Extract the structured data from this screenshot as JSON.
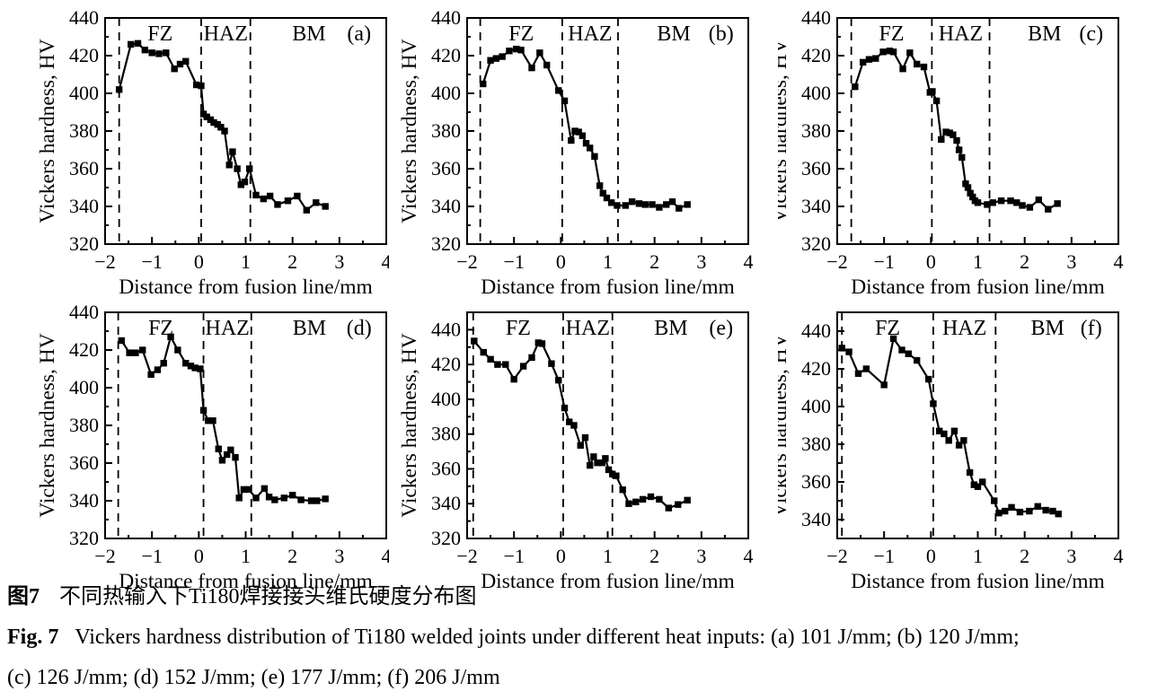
{
  "caption": {
    "zh_label": "图7",
    "zh_text": "不同热输入下Ti180焊接接头维氏硬度分布图",
    "en_label": "Fig. 7",
    "en_text": "Vickers hardness distribution of Ti180 welded joints under different heat inputs: (a) 101 J/mm; (b) 120 J/mm;",
    "en_line2": "(c) 126 J/mm; (d) 152 J/mm; (e) 177 J/mm; (f) 206 J/mm"
  },
  "chart_data": [
    {
      "type": "line",
      "panel": "(a)",
      "heat_input": "101 J/mm",
      "xlabel": "Distance from fusion line/mm",
      "ylabel": "Vickers hardness, HV",
      "xlim": [
        -2,
        4
      ],
      "ylim": [
        320,
        440
      ],
      "xticks": [
        -2,
        -1,
        0,
        1,
        2,
        3,
        4
      ],
      "yticks": [
        320,
        340,
        360,
        380,
        400,
        420,
        440
      ],
      "region_lines": [
        -1.7,
        0.05,
        1.1
      ],
      "region_labels": [
        "FZ",
        "HAZ",
        "BM"
      ],
      "marker": "square",
      "color": "#000000",
      "points": [
        [
          -1.7,
          402
        ],
        [
          -1.45,
          426
        ],
        [
          -1.3,
          426.5
        ],
        [
          -1.15,
          423
        ],
        [
          -1.0,
          421.5
        ],
        [
          -0.85,
          421
        ],
        [
          -0.7,
          421.5
        ],
        [
          -0.52,
          413
        ],
        [
          -0.4,
          415.5
        ],
        [
          -0.28,
          417
        ],
        [
          -0.05,
          404.5
        ],
        [
          0.05,
          404
        ],
        [
          0.1,
          389
        ],
        [
          0.17,
          387.5
        ],
        [
          0.25,
          386
        ],
        [
          0.32,
          384.5
        ],
        [
          0.4,
          383.5
        ],
        [
          0.47,
          382
        ],
        [
          0.55,
          380
        ],
        [
          0.65,
          362
        ],
        [
          0.72,
          369
        ],
        [
          0.82,
          360
        ],
        [
          0.9,
          351.5
        ],
        [
          0.98,
          353
        ],
        [
          1.08,
          360
        ],
        [
          1.22,
          346
        ],
        [
          1.38,
          344
        ],
        [
          1.52,
          345.5
        ],
        [
          1.68,
          341
        ],
        [
          1.9,
          343
        ],
        [
          2.1,
          345.5
        ],
        [
          2.3,
          338
        ],
        [
          2.5,
          342
        ],
        [
          2.7,
          340
        ]
      ]
    },
    {
      "type": "line",
      "panel": "(b)",
      "heat_input": "120 J/mm",
      "xlabel": "Distance from fusion line/mm",
      "ylabel": "Vickers hardness, HV",
      "xlim": [
        -2,
        4
      ],
      "ylim": [
        320,
        440
      ],
      "xticks": [
        -2,
        -1,
        0,
        1,
        2,
        3,
        4
      ],
      "yticks": [
        320,
        340,
        360,
        380,
        400,
        420,
        440
      ],
      "region_lines": [
        -1.72,
        0.03,
        1.22
      ],
      "region_labels": [
        "FZ",
        "HAZ",
        "BM"
      ],
      "marker": "square",
      "color": "#000000",
      "points": [
        [
          -1.66,
          405
        ],
        [
          -1.5,
          417.5
        ],
        [
          -1.38,
          418.5
        ],
        [
          -1.25,
          419.5
        ],
        [
          -1.1,
          422.5
        ],
        [
          -0.95,
          423.5
        ],
        [
          -0.85,
          423
        ],
        [
          -0.62,
          413.5
        ],
        [
          -0.45,
          421.5
        ],
        [
          -0.3,
          415
        ],
        [
          -0.05,
          401.5
        ],
        [
          0.08,
          396
        ],
        [
          0.22,
          375
        ],
        [
          0.3,
          380
        ],
        [
          0.38,
          379.5
        ],
        [
          0.46,
          377.5
        ],
        [
          0.54,
          373.5
        ],
        [
          0.62,
          371
        ],
        [
          0.72,
          366.5
        ],
        [
          0.83,
          351
        ],
        [
          0.9,
          347
        ],
        [
          0.98,
          344.5
        ],
        [
          1.08,
          342
        ],
        [
          1.2,
          340.5
        ],
        [
          1.38,
          340.5
        ],
        [
          1.52,
          342.5
        ],
        [
          1.67,
          341.5
        ],
        [
          1.8,
          341
        ],
        [
          1.95,
          341
        ],
        [
          2.1,
          339.5
        ],
        [
          2.25,
          341
        ],
        [
          2.38,
          342.5
        ],
        [
          2.52,
          339
        ],
        [
          2.7,
          341
        ]
      ]
    },
    {
      "type": "line",
      "panel": "(c)",
      "heat_input": "126 J/mm",
      "xlabel": "Distance from fusion line/mm",
      "ylabel": "Vickers hardness, HV",
      "xlim": [
        -2,
        4
      ],
      "ylim": [
        320,
        440
      ],
      "xticks": [
        -2,
        -1,
        0,
        1,
        2,
        3,
        4
      ],
      "yticks": [
        320,
        340,
        360,
        380,
        400,
        420,
        440
      ],
      "region_lines": [
        -1.7,
        0.02,
        1.25
      ],
      "region_labels": [
        "FZ",
        "HAZ",
        "BM"
      ],
      "marker": "square",
      "color": "#000000",
      "points": [
        [
          -1.62,
          403.5
        ],
        [
          -1.45,
          416.5
        ],
        [
          -1.32,
          418
        ],
        [
          -1.18,
          418.5
        ],
        [
          -1.02,
          422
        ],
        [
          -0.88,
          422.5
        ],
        [
          -0.8,
          422
        ],
        [
          -0.6,
          413
        ],
        [
          -0.45,
          421.5
        ],
        [
          -0.3,
          415.5
        ],
        [
          -0.15,
          414
        ],
        [
          -0.02,
          400.5
        ],
        [
          0.03,
          401
        ],
        [
          0.12,
          396
        ],
        [
          0.22,
          375.5
        ],
        [
          0.32,
          379.5
        ],
        [
          0.4,
          379
        ],
        [
          0.47,
          378
        ],
        [
          0.55,
          375
        ],
        [
          0.6,
          370
        ],
        [
          0.66,
          366
        ],
        [
          0.74,
          352
        ],
        [
          0.79,
          350
        ],
        [
          0.84,
          347
        ],
        [
          0.89,
          345
        ],
        [
          0.94,
          343
        ],
        [
          1.0,
          342
        ],
        [
          1.2,
          341
        ],
        [
          1.32,
          342
        ],
        [
          1.5,
          343
        ],
        [
          1.7,
          343
        ],
        [
          1.83,
          342
        ],
        [
          1.95,
          340.5
        ],
        [
          2.11,
          339.5
        ],
        [
          2.3,
          343.5
        ],
        [
          2.5,
          338.5
        ],
        [
          2.7,
          341.5
        ]
      ]
    },
    {
      "type": "line",
      "panel": "(d)",
      "heat_input": "152 J/mm",
      "xlabel": "Distance from fusion line/mm",
      "ylabel": "Vickers hardness, HV",
      "xlim": [
        -2,
        4
      ],
      "ylim": [
        320,
        440
      ],
      "xticks": [
        -2,
        -1,
        0,
        1,
        2,
        3,
        4
      ],
      "yticks": [
        320,
        340,
        360,
        380,
        400,
        420,
        440
      ],
      "region_lines": [
        -1.72,
        0.1,
        1.12
      ],
      "region_labels": [
        "FZ",
        "HAZ",
        "BM"
      ],
      "marker": "square",
      "color": "#000000",
      "points": [
        [
          -1.65,
          425
        ],
        [
          -1.48,
          418.5
        ],
        [
          -1.35,
          418.5
        ],
        [
          -1.2,
          420
        ],
        [
          -1.02,
          407
        ],
        [
          -0.88,
          409.5
        ],
        [
          -0.75,
          413
        ],
        [
          -0.6,
          427
        ],
        [
          -0.45,
          420
        ],
        [
          -0.28,
          413
        ],
        [
          -0.17,
          411.5
        ],
        [
          -0.08,
          410.5
        ],
        [
          0.03,
          410
        ],
        [
          0.1,
          388
        ],
        [
          0.2,
          382.5
        ],
        [
          0.3,
          382.5
        ],
        [
          0.42,
          367.5
        ],
        [
          0.5,
          361.5
        ],
        [
          0.6,
          364.5
        ],
        [
          0.68,
          367
        ],
        [
          0.78,
          363
        ],
        [
          0.86,
          341.5
        ],
        [
          0.96,
          346
        ],
        [
          1.06,
          346
        ],
        [
          1.22,
          341.5
        ],
        [
          1.4,
          346.5
        ],
        [
          1.5,
          342
        ],
        [
          1.62,
          340.5
        ],
        [
          1.82,
          341.5
        ],
        [
          2.0,
          343
        ],
        [
          2.18,
          340.5
        ],
        [
          2.4,
          340
        ],
        [
          2.52,
          340
        ],
        [
          2.7,
          341
        ]
      ]
    },
    {
      "type": "line",
      "panel": "(e)",
      "heat_input": "177 J/mm",
      "xlabel": "Distance from fusion line/mm",
      "ylabel": "Vickers hardness, HV",
      "xlim": [
        -2,
        4
      ],
      "ylim": [
        320,
        450
      ],
      "xticks": [
        -2,
        -1,
        0,
        1,
        2,
        3,
        4
      ],
      "yticks": [
        320,
        340,
        360,
        380,
        400,
        420,
        440
      ],
      "region_lines": [
        -1.87,
        0.05,
        1.1
      ],
      "region_labels": [
        "FZ",
        "HAZ",
        "BM"
      ],
      "marker": "square",
      "color": "#000000",
      "points": [
        [
          -1.85,
          433.5
        ],
        [
          -1.65,
          427
        ],
        [
          -1.5,
          423
        ],
        [
          -1.35,
          420
        ],
        [
          -1.18,
          420
        ],
        [
          -1.0,
          411.5
        ],
        [
          -0.8,
          419
        ],
        [
          -0.62,
          424
        ],
        [
          -0.48,
          432.5
        ],
        [
          -0.4,
          432
        ],
        [
          -0.2,
          420.5
        ],
        [
          -0.05,
          411
        ],
        [
          0.08,
          395
        ],
        [
          0.18,
          387
        ],
        [
          0.28,
          385
        ],
        [
          0.42,
          373.5
        ],
        [
          0.52,
          378
        ],
        [
          0.62,
          362
        ],
        [
          0.7,
          367
        ],
        [
          0.78,
          363.5
        ],
        [
          0.88,
          363.5
        ],
        [
          0.95,
          366
        ],
        [
          1.02,
          359.5
        ],
        [
          1.1,
          357
        ],
        [
          1.18,
          356
        ],
        [
          1.32,
          348
        ],
        [
          1.45,
          340
        ],
        [
          1.6,
          341
        ],
        [
          1.75,
          342.5
        ],
        [
          1.92,
          344
        ],
        [
          2.1,
          342.5
        ],
        [
          2.3,
          337.5
        ],
        [
          2.5,
          339.5
        ],
        [
          2.7,
          342
        ]
      ]
    },
    {
      "type": "line",
      "panel": "(f)",
      "heat_input": "206 J/mm",
      "xlabel": "Distance from fusion line/mm",
      "ylabel": "Vickers hardness, HV",
      "xlim": [
        -2,
        4
      ],
      "ylim": [
        330,
        450
      ],
      "xticks": [
        -2,
        -1,
        0,
        1,
        2,
        3,
        4
      ],
      "yticks": [
        340,
        360,
        380,
        400,
        420,
        440
      ],
      "region_lines": [
        -1.9,
        0.05,
        1.38
      ],
      "region_labels": [
        "FZ",
        "HAZ",
        "BM"
      ],
      "marker": "square",
      "color": "#000000",
      "points": [
        [
          -1.9,
          431
        ],
        [
          -1.75,
          429
        ],
        [
          -1.55,
          417.5
        ],
        [
          -1.38,
          420
        ],
        [
          -1.0,
          411.5
        ],
        [
          -0.8,
          436
        ],
        [
          -0.62,
          430
        ],
        [
          -0.48,
          428
        ],
        [
          -0.3,
          424.5
        ],
        [
          -0.05,
          414.5
        ],
        [
          0.05,
          401.5
        ],
        [
          0.18,
          387
        ],
        [
          0.28,
          385.5
        ],
        [
          0.38,
          382
        ],
        [
          0.5,
          387
        ],
        [
          0.6,
          379.5
        ],
        [
          0.7,
          382
        ],
        [
          0.83,
          365
        ],
        [
          0.92,
          358.5
        ],
        [
          1.0,
          357.5
        ],
        [
          1.1,
          360
        ],
        [
          1.35,
          350
        ],
        [
          1.45,
          343.5
        ],
        [
          1.58,
          344.5
        ],
        [
          1.72,
          346.5
        ],
        [
          1.9,
          344
        ],
        [
          2.1,
          344.5
        ],
        [
          2.28,
          347
        ],
        [
          2.45,
          345
        ],
        [
          2.6,
          344.5
        ],
        [
          2.72,
          343
        ]
      ]
    }
  ]
}
